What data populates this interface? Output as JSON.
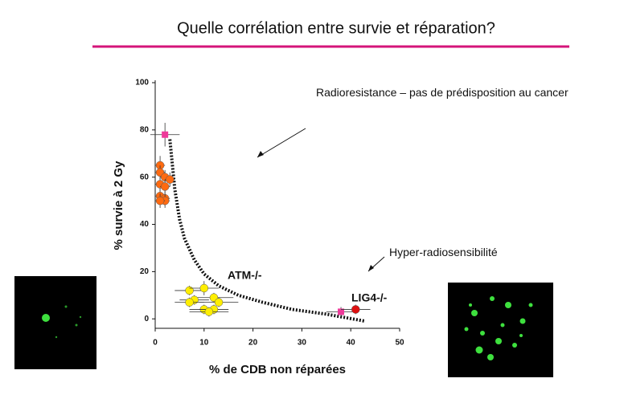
{
  "chart_data": {
    "type": "scatter",
    "title": "Quelle corrélation entre survie et réparation?",
    "x_label": "% de CDB non réparées",
    "y_label": "% survie à 2 Gy",
    "xlim": [
      0,
      50
    ],
    "ylim": [
      -4,
      100
    ],
    "xticks": [
      0,
      10,
      20,
      30,
      40,
      50
    ],
    "yticks": [
      0,
      20,
      40,
      60,
      80,
      100
    ],
    "series": [
      {
        "color": "#111111",
        "style": "dotted-line",
        "x": [
          3,
          4,
          5,
          6,
          8,
          10,
          13,
          17,
          22,
          28,
          35,
          43
        ],
        "values": [
          76,
          55,
          42,
          34,
          25,
          19,
          14,
          10,
          7,
          4,
          2,
          -1
        ]
      },
      {
        "color": "#ff6a10",
        "marker": "circle",
        "x": [
          1,
          1,
          2,
          3,
          1,
          2,
          1,
          2,
          2,
          1
        ],
        "values": [
          65,
          62,
          60,
          59,
          57,
          56,
          52,
          51,
          50,
          50
        ],
        "xerr": [
          1,
          1,
          1,
          1,
          1,
          1,
          1,
          1,
          1,
          1
        ],
        "yerr": [
          4,
          3,
          3,
          3,
          3,
          3,
          3,
          3,
          3,
          3
        ]
      },
      {
        "color": "#ffee00",
        "marker": "circle",
        "x": [
          7,
          10,
          12,
          8,
          13,
          10,
          12,
          11,
          7
        ],
        "values": [
          12,
          13,
          9,
          8,
          7,
          4,
          4,
          3,
          7
        ],
        "xerr": [
          3,
          3,
          4,
          3,
          4,
          3,
          3,
          4,
          3
        ],
        "yerr": [
          2,
          3,
          2,
          2,
          2,
          2,
          2,
          2,
          2
        ]
      },
      {
        "color": "#ee3a9a",
        "marker": "square",
        "x": [
          2,
          38
        ],
        "values": [
          78,
          3
        ],
        "xerr": [
          3,
          3
        ],
        "yerr": [
          5,
          2
        ]
      },
      {
        "color": "#dd1111",
        "marker": "circle",
        "x": [
          41
        ],
        "values": [
          4
        ],
        "xerr": [
          3
        ],
        "yerr": [
          2
        ]
      }
    ],
    "annotations": [
      {
        "text": "Radioresistance – pas de prédisposition au cancer"
      },
      {
        "text": "Hyper-radiosensibilité"
      },
      {
        "text": "ATM-/-"
      },
      {
        "text": "LIG4-/-"
      }
    ]
  }
}
